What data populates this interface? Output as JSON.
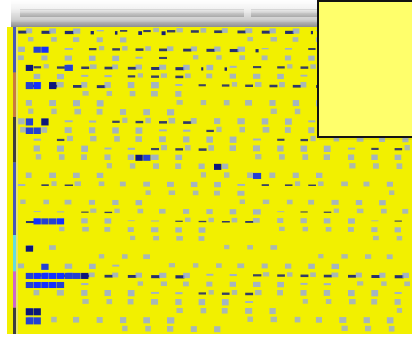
{
  "window": {
    "title": ""
  },
  "callout": {
    "text": ""
  },
  "colors": {
    "background": "#f2f000",
    "accent_dark": "#0c167a",
    "accent_mid": "#2440d2",
    "accent_bright": "#1330ff",
    "accent_light": "#8aa0ff",
    "callout": "#ffff6b",
    "header_dark": "#5a5a5a",
    "sidebar_colors": [
      "#4657b6",
      "#c97a3f",
      "#66dddd",
      "#cc66cc",
      "#3d3d3d"
    ]
  },
  "chart_data": {
    "type": "heatmap",
    "title": "",
    "xlabel": "",
    "ylabel": "",
    "grid": false,
    "legend": "none",
    "value_range": [
      0,
      3
    ],
    "rows": 34,
    "cols": 50,
    "row_annotations": [
      {
        "start": 0,
        "end": 5,
        "color": "#4657b6"
      },
      {
        "start": 5,
        "end": 10,
        "color": "#c97a3f"
      },
      {
        "start": 10,
        "end": 15,
        "color": "#3d3d3d"
      },
      {
        "start": 15,
        "end": 23,
        "color": "#4657b6"
      },
      {
        "start": 23,
        "end": 27,
        "color": "#66dddd"
      },
      {
        "start": 27,
        "end": 31,
        "color": "#cc66cc"
      },
      {
        "start": 31,
        "end": 34,
        "color": "#3d3d3d"
      }
    ],
    "highlight_cells": [
      {
        "row": 2,
        "col": 2,
        "value": 2
      },
      {
        "row": 2,
        "col": 3,
        "value": 3
      },
      {
        "row": 4,
        "col": 1,
        "value": 1
      },
      {
        "row": 4,
        "col": 6,
        "value": 2
      },
      {
        "row": 6,
        "col": 1,
        "value": 2
      },
      {
        "row": 6,
        "col": 2,
        "value": 3
      },
      {
        "row": 6,
        "col": 4,
        "value": 1
      },
      {
        "row": 10,
        "col": 1,
        "value": 2
      },
      {
        "row": 10,
        "col": 3,
        "value": 1
      },
      {
        "row": 11,
        "col": 1,
        "value": 2
      },
      {
        "row": 11,
        "col": 2,
        "value": 2
      },
      {
        "row": 14,
        "col": 15,
        "value": 1
      },
      {
        "row": 14,
        "col": 16,
        "value": 2
      },
      {
        "row": 15,
        "col": 25,
        "value": 1
      },
      {
        "row": 16,
        "col": 30,
        "value": 2
      },
      {
        "row": 21,
        "col": 2,
        "value": 3
      },
      {
        "row": 21,
        "col": 3,
        "value": 2
      },
      {
        "row": 21,
        "col": 4,
        "value": 2
      },
      {
        "row": 21,
        "col": 5,
        "value": 3
      },
      {
        "row": 24,
        "col": 1,
        "value": 1
      },
      {
        "row": 26,
        "col": 3,
        "value": 2
      },
      {
        "row": 27,
        "col": 1,
        "value": 2
      },
      {
        "row": 27,
        "col": 2,
        "value": 3
      },
      {
        "row": 27,
        "col": 3,
        "value": 3
      },
      {
        "row": 27,
        "col": 4,
        "value": 3
      },
      {
        "row": 27,
        "col": 5,
        "value": 3
      },
      {
        "row": 27,
        "col": 6,
        "value": 2
      },
      {
        "row": 27,
        "col": 7,
        "value": 2
      },
      {
        "row": 27,
        "col": 8,
        "value": 1
      },
      {
        "row": 28,
        "col": 1,
        "value": 2
      },
      {
        "row": 28,
        "col": 2,
        "value": 3
      },
      {
        "row": 28,
        "col": 3,
        "value": 3
      },
      {
        "row": 28,
        "col": 4,
        "value": 3
      },
      {
        "row": 28,
        "col": 5,
        "value": 2
      },
      {
        "row": 31,
        "col": 1,
        "value": 1
      },
      {
        "row": 31,
        "col": 2,
        "value": 1
      },
      {
        "row": 32,
        "col": 1,
        "value": 2
      },
      {
        "row": 32,
        "col": 2,
        "value": 2
      }
    ],
    "row_density": [
      0.72,
      0.2,
      0.58,
      0.33,
      0.62,
      0.42,
      0.5,
      0.15,
      0.25,
      0.22,
      0.46,
      0.35,
      0.35,
      0.42,
      0.25,
      0.18,
      0.2,
      0.38,
      0.14,
      0.22,
      0.36,
      0.46,
      0.24,
      0.12,
      0.1,
      0.12,
      0.26,
      0.56,
      0.32,
      0.4,
      0.28,
      0.18,
      0.24,
      0.18
    ]
  }
}
